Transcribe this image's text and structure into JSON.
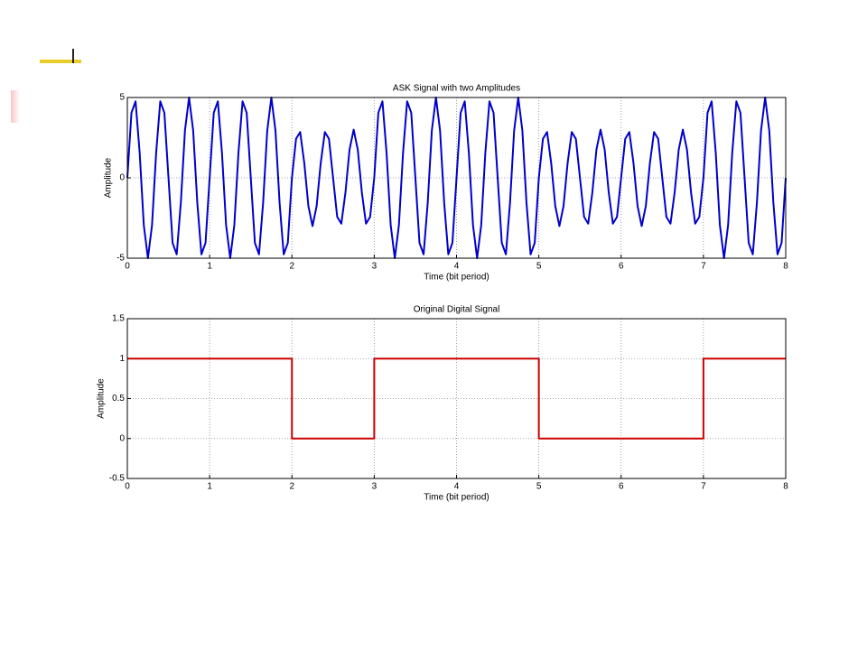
{
  "chart_data": [
    {
      "type": "line",
      "title": "ASK Signal with two Amplitudes",
      "xlabel": "Time (bit period)",
      "ylabel": "Amplitude",
      "color": "#0000cc",
      "xlim": [
        0,
        8
      ],
      "xticks": [
        0,
        1,
        2,
        3,
        4,
        5,
        6,
        7,
        8
      ],
      "ylim": [
        -5,
        5
      ],
      "yticks": [
        -5,
        0,
        5
      ],
      "grid": true,
      "x": [
        0,
        0.05,
        0.1,
        0.15,
        0.2,
        0.25,
        0.3,
        0.35,
        0.4,
        0.45,
        0.5,
        0.55,
        0.6,
        0.65,
        0.7,
        0.75,
        0.8,
        0.85,
        0.9,
        0.95,
        1,
        1.05,
        1.1,
        1.15,
        1.2,
        1.25,
        1.3,
        1.35,
        1.4,
        1.45,
        1.5,
        1.55,
        1.6,
        1.65,
        1.7,
        1.75,
        1.8,
        1.85,
        1.9,
        1.95,
        2,
        2.05,
        2.1,
        2.15,
        2.2,
        2.25,
        2.3,
        2.35,
        2.4,
        2.45,
        2.5,
        2.55,
        2.6,
        2.65,
        2.7,
        2.75,
        2.8,
        2.85,
        2.9,
        2.95,
        3,
        3.05,
        3.1,
        3.15,
        3.2,
        3.25,
        3.3,
        3.35,
        3.4,
        3.45,
        3.5,
        3.55,
        3.6,
        3.65,
        3.7,
        3.75,
        3.8,
        3.85,
        3.9,
        3.95,
        4,
        4.05,
        4.1,
        4.15,
        4.2,
        4.25,
        4.3,
        4.35,
        4.4,
        4.45,
        4.5,
        4.55,
        4.6,
        4.65,
        4.7,
        4.75,
        4.8,
        4.85,
        4.9,
        4.95,
        5,
        5.05,
        5.1,
        5.15,
        5.2,
        5.25,
        5.3,
        5.35,
        5.4,
        5.45,
        5.5,
        5.55,
        5.6,
        5.65,
        5.7,
        5.75,
        5.8,
        5.85,
        5.9,
        5.95,
        6,
        6.05,
        6.1,
        6.15,
        6.2,
        6.25,
        6.3,
        6.35,
        6.4,
        6.45,
        6.5,
        6.55,
        6.6,
        6.65,
        6.7,
        6.75,
        6.8,
        6.85,
        6.9,
        6.95,
        7,
        7.05,
        7.1,
        7.15,
        7.2,
        7.25,
        7.3,
        7.35,
        7.4,
        7.45,
        7.5,
        7.55,
        7.6,
        7.65,
        7.7,
        7.75,
        7.8,
        7.85,
        7.9,
        7.95,
        8
      ],
      "values": [
        0,
        4.05,
        4.76,
        1.55,
        -2.94,
        -5,
        -2.94,
        1.55,
        4.76,
        4.05,
        0,
        -4.05,
        -4.76,
        -1.55,
        2.94,
        5,
        2.94,
        -1.55,
        -4.76,
        -4.05,
        0,
        4.05,
        4.76,
        1.55,
        -2.94,
        -5,
        -2.94,
        1.55,
        4.76,
        4.05,
        0,
        -4.05,
        -4.76,
        -1.55,
        2.94,
        5,
        2.94,
        -1.55,
        -4.76,
        -4.05,
        0,
        2.43,
        2.85,
        0.93,
        -1.76,
        -3,
        -1.76,
        0.93,
        2.85,
        2.43,
        0,
        -2.43,
        -2.85,
        -0.93,
        1.76,
        3,
        1.76,
        -0.93,
        -2.85,
        -2.43,
        0,
        4.05,
        4.76,
        1.55,
        -2.94,
        -5,
        -2.94,
        1.55,
        4.76,
        4.05,
        0,
        -4.05,
        -4.76,
        -1.55,
        2.94,
        5,
        2.94,
        -1.55,
        -4.76,
        -4.05,
        0,
        4.05,
        4.76,
        1.55,
        -2.94,
        -5,
        -2.94,
        1.55,
        4.76,
        4.05,
        0,
        -4.05,
        -4.76,
        -1.55,
        2.94,
        5,
        2.94,
        -1.55,
        -4.76,
        -4.05,
        0,
        2.43,
        2.85,
        0.93,
        -1.76,
        -3,
        -1.76,
        0.93,
        2.85,
        2.43,
        0,
        -2.43,
        -2.85,
        -0.93,
        1.76,
        3,
        1.76,
        -0.93,
        -2.85,
        -2.43,
        0,
        2.43,
        2.85,
        0.93,
        -1.76,
        -3,
        -1.76,
        0.93,
        2.85,
        2.43,
        0,
        -2.43,
        -2.85,
        -0.93,
        1.76,
        3,
        1.76,
        -0.93,
        -2.85,
        -2.43,
        0,
        4.05,
        4.76,
        1.55,
        -2.94,
        -5,
        -2.94,
        1.55,
        4.76,
        4.05,
        0,
        -4.05,
        -4.76,
        -1.55,
        2.94,
        5,
        2.94,
        -1.55,
        -4.76,
        -4.05,
        0
      ]
    },
    {
      "type": "line",
      "title": "Original Digital Signal",
      "xlabel": "Time (bit period)",
      "ylabel": "Amplitude",
      "color": "#cc0000",
      "xlim": [
        0,
        8
      ],
      "xticks": [
        0,
        1,
        2,
        3,
        4,
        5,
        6,
        7,
        8
      ],
      "ylim": [
        -0.5,
        1.5
      ],
      "yticks": [
        -0.5,
        0,
        0.5,
        1,
        1.5
      ],
      "grid": true,
      "x": [
        0,
        2,
        2,
        3,
        3,
        5,
        5,
        7,
        7,
        8
      ],
      "values": [
        1,
        1,
        0,
        0,
        1,
        1,
        0,
        0,
        1,
        1
      ]
    }
  ]
}
